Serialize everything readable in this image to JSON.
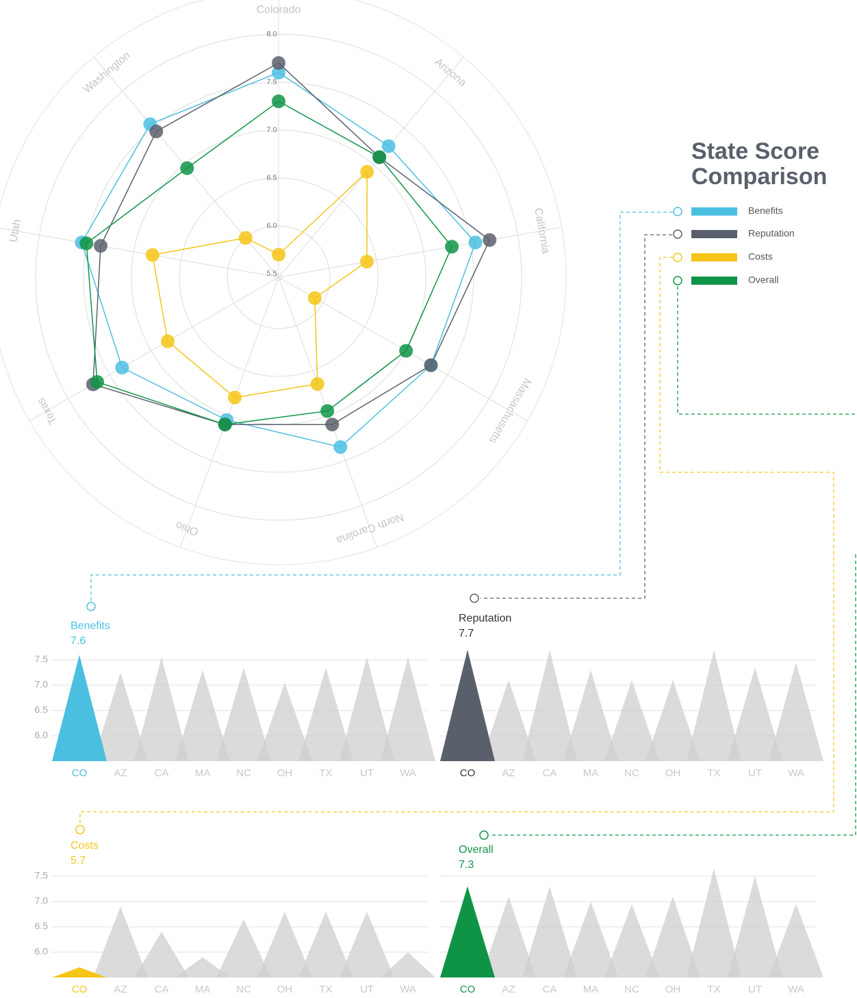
{
  "chart_data": [
    {
      "type": "radar",
      "title": "State Score Comparison",
      "categories": [
        "Colorado",
        "Arizona",
        "California",
        "Massachusetts",
        "North Carolina",
        "Ohio",
        "Texas",
        "Utah",
        "Washington"
      ],
      "series": [
        {
          "name": "Benefits",
          "color": "#4bbfe0",
          "values": [
            7.6,
            7.25,
            7.55,
            7.3,
            7.35,
            7.05,
            7.35,
            7.55,
            7.55
          ]
        },
        {
          "name": "Reputation",
          "color": "#5a606b",
          "values": [
            7.7,
            7.1,
            7.7,
            7.3,
            7.1,
            7.1,
            7.7,
            7.35,
            7.45
          ]
        },
        {
          "name": "Costs",
          "color": "#f5c518",
          "values": [
            5.7,
            6.9,
            6.4,
            5.9,
            6.65,
            6.8,
            6.8,
            6.8,
            6.0
          ]
        },
        {
          "name": "Overall",
          "color": "#0f9447",
          "values": [
            7.3,
            7.1,
            7.3,
            7.0,
            6.95,
            7.1,
            7.65,
            7.5,
            6.95
          ]
        }
      ],
      "rlim": [
        5.5,
        8.0
      ],
      "rticks": [
        5.5,
        {
          "value": 6,
          "label": "6.0"
        },
        6.5,
        {
          "value": 7,
          "label": "7.0"
        },
        7.5,
        {
          "value": 8,
          "label": "8.0"
        }
      ]
    },
    {
      "type": "bar",
      "title": "Benefits",
      "color": "#4bbfe0",
      "base_color": "#cfcfcf",
      "categories": [
        "CO",
        "AZ",
        "CA",
        "MA",
        "NC",
        "OH",
        "TX",
        "UT",
        "WA"
      ],
      "values": [
        7.6,
        7.25,
        7.55,
        7.3,
        7.35,
        7.05,
        7.35,
        7.55,
        7.55
      ],
      "ylim": [
        5.5,
        7.8
      ],
      "yticks": [
        {
          "value": 6,
          "label": "6.0"
        },
        6.5,
        {
          "value": 7,
          "label": "7.0"
        },
        7.5
      ]
    },
    {
      "type": "bar",
      "title": "Reputation",
      "color": "#5a606b",
      "base_color": "#cfcfcf",
      "categories": [
        "CO",
        "AZ",
        "CA",
        "MA",
        "NC",
        "OH",
        "TX",
        "UT",
        "WA"
      ],
      "values": [
        7.7,
        7.1,
        7.7,
        7.3,
        7.1,
        7.1,
        7.7,
        7.35,
        7.45
      ],
      "ylim": [
        5.5,
        7.8
      ],
      "yticks": [
        {
          "value": 6,
          "label": "6.0"
        },
        6.5,
        {
          "value": 7,
          "label": "7.0"
        },
        7.5
      ]
    },
    {
      "type": "bar",
      "title": "Costs",
      "color": "#f5c518",
      "base_color": "#cfcfcf",
      "categories": [
        "CO",
        "AZ",
        "CA",
        "MA",
        "NC",
        "OH",
        "TX",
        "UT",
        "WA"
      ],
      "values": [
        5.7,
        6.9,
        6.4,
        5.9,
        6.65,
        6.8,
        6.8,
        6.8,
        6.0
      ],
      "ylim": [
        5.5,
        7.8
      ],
      "yticks": [
        {
          "value": 6,
          "label": "6.0"
        },
        6.5,
        {
          "value": 7,
          "label": "7.0"
        },
        7.5
      ]
    },
    {
      "type": "bar",
      "title": "Overall",
      "color": "#0f9447",
      "base_color": "#cfcfcf",
      "categories": [
        "CO",
        "AZ",
        "CA",
        "MA",
        "NC",
        "OH",
        "TX",
        "UT",
        "WA"
      ],
      "values": [
        7.3,
        7.1,
        7.3,
        7.0,
        6.95,
        7.1,
        7.65,
        7.5,
        6.95
      ],
      "ylim": [
        5.5,
        7.8
      ],
      "yticks": [
        {
          "value": 6,
          "label": "6.0"
        },
        6.5,
        {
          "value": 7,
          "label": "7.0"
        },
        7.5
      ]
    }
  ]
}
